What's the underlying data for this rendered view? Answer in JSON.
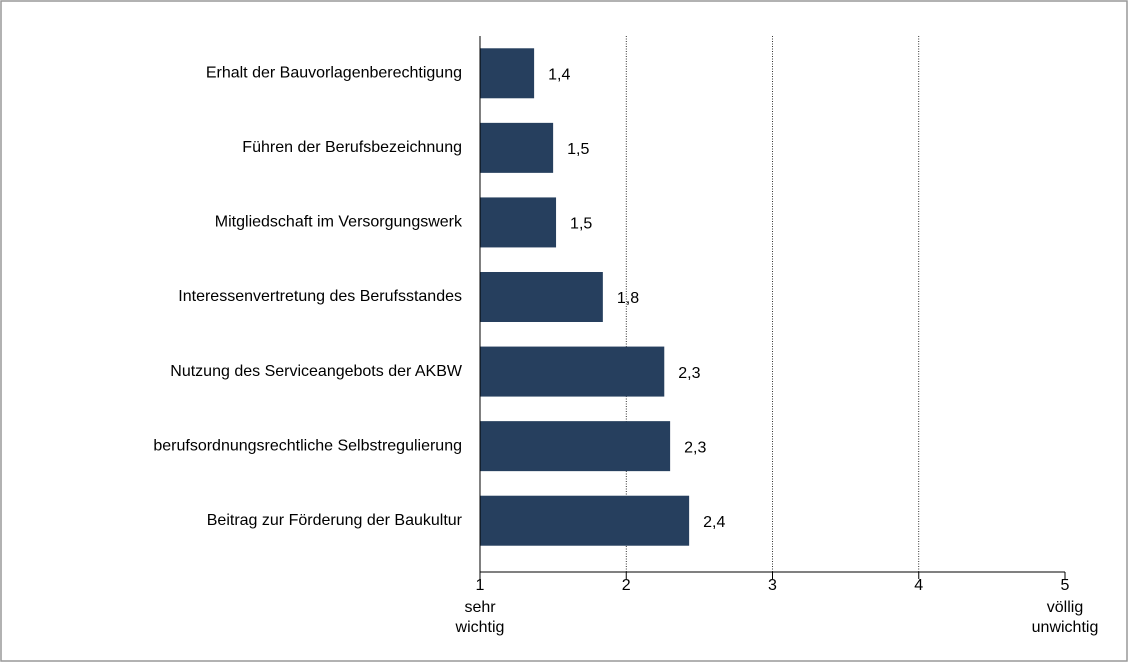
{
  "chart_data": {
    "type": "hbar",
    "categories": [
      "Erhalt der Bauvorlagenberechtigung",
      "Führen der Berufsbezeichnung",
      "Mitgliedschaft im Versorgungswerk",
      "Interessenvertretung des Berufsstandes",
      "Nutzung des Serviceangebots der AKBW",
      "berufsordnungsrechtliche Selbstregulierung",
      "Beitrag zur Förderung der Baukultur"
    ],
    "values": [
      1.37,
      1.5,
      1.52,
      1.84,
      2.26,
      2.3,
      2.43
    ],
    "value_labels": [
      "1,4",
      "1,5",
      "1,5",
      "1,8",
      "2,3",
      "2,3",
      "2,4"
    ],
    "color": "#263f5e",
    "xlim": [
      1,
      5
    ],
    "xticks": [
      1,
      2,
      3,
      4,
      5
    ],
    "grid": true,
    "annotations": [
      {
        "x": 1,
        "text": [
          "sehr",
          "wichtig"
        ]
      },
      {
        "x": 5,
        "text": [
          "völlig",
          "unwichtig"
        ]
      }
    ]
  }
}
